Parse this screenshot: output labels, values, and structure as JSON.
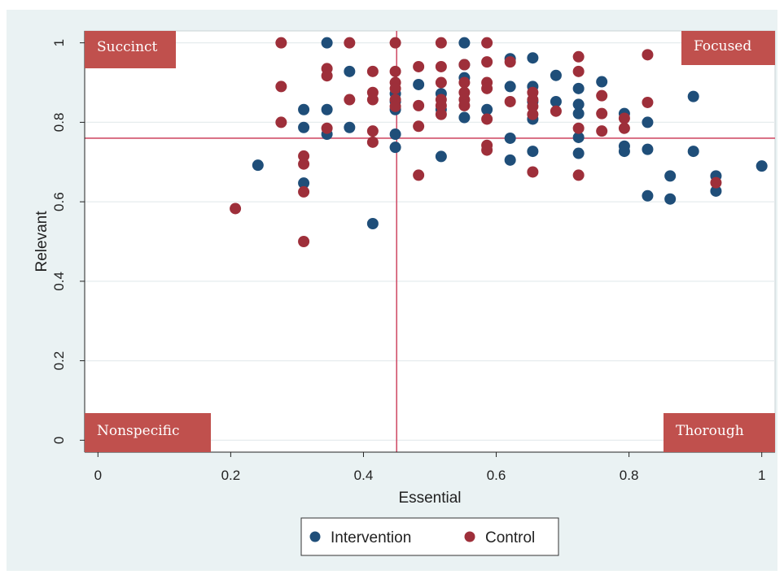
{
  "chart_data": {
    "type": "scatter",
    "title": "",
    "xlabel": "Essential",
    "ylabel": "Relevant",
    "xlim": [
      -0.02,
      1.02
    ],
    "ylim": [
      -0.03,
      1.03
    ],
    "xticks": [
      "0",
      "0.2",
      "0.4",
      "0.6",
      "0.8",
      "1"
    ],
    "yticks": [
      "0",
      "0.2",
      "0.4",
      "0.6",
      "0.8",
      "1"
    ],
    "grid": true,
    "legend_position": "bottom",
    "reference_lines": {
      "x": 0.45,
      "y": 0.76,
      "color": "#d0506a"
    },
    "quadrant_labels": {
      "top_left": "Succinct",
      "top_right": "Focused",
      "bottom_left": "Nonspecific",
      "bottom_right": "Thorough"
    },
    "series": [
      {
        "name": "Intervention",
        "color": "#1f4e79",
        "points": [
          [
            0.241,
            0.692
          ],
          [
            0.31,
            0.832
          ],
          [
            0.31,
            0.787
          ],
          [
            0.31,
            0.647
          ],
          [
            0.345,
            1.0
          ],
          [
            0.345,
            0.832
          ],
          [
            0.345,
            0.77
          ],
          [
            0.379,
            0.928
          ],
          [
            0.379,
            0.787
          ],
          [
            0.414,
            0.545
          ],
          [
            0.448,
            0.872
          ],
          [
            0.448,
            0.852
          ],
          [
            0.448,
            0.832
          ],
          [
            0.448,
            0.77
          ],
          [
            0.448,
            0.737
          ],
          [
            0.483,
            0.895
          ],
          [
            0.517,
            0.872
          ],
          [
            0.517,
            0.832
          ],
          [
            0.517,
            0.714
          ],
          [
            0.552,
            1.0
          ],
          [
            0.552,
            0.945
          ],
          [
            0.552,
            0.912
          ],
          [
            0.552,
            0.812
          ],
          [
            0.586,
            0.832
          ],
          [
            0.621,
            0.96
          ],
          [
            0.621,
            0.89
          ],
          [
            0.621,
            0.76
          ],
          [
            0.621,
            0.705
          ],
          [
            0.655,
            0.962
          ],
          [
            0.655,
            0.89
          ],
          [
            0.655,
            0.852
          ],
          [
            0.655,
            0.808
          ],
          [
            0.655,
            0.727
          ],
          [
            0.69,
            0.918
          ],
          [
            0.69,
            0.852
          ],
          [
            0.724,
            0.885
          ],
          [
            0.724,
            0.845
          ],
          [
            0.724,
            0.822
          ],
          [
            0.724,
            0.762
          ],
          [
            0.724,
            0.722
          ],
          [
            0.759,
            0.902
          ],
          [
            0.793,
            0.822
          ],
          [
            0.793,
            0.74
          ],
          [
            0.793,
            0.727
          ],
          [
            0.828,
            0.8
          ],
          [
            0.828,
            0.732
          ],
          [
            0.828,
            0.615
          ],
          [
            0.862,
            0.665
          ],
          [
            0.862,
            0.607
          ],
          [
            0.897,
            0.865
          ],
          [
            0.897,
            0.727
          ],
          [
            0.931,
            0.665
          ],
          [
            0.931,
            0.627
          ],
          [
            1.0,
            0.69
          ]
        ]
      },
      {
        "name": "Control",
        "color": "#9e2f3a",
        "points": [
          [
            0.207,
            0.583
          ],
          [
            0.276,
            1.0
          ],
          [
            0.276,
            0.89
          ],
          [
            0.276,
            0.8
          ],
          [
            0.31,
            0.715
          ],
          [
            0.31,
            0.695
          ],
          [
            0.31,
            0.625
          ],
          [
            0.31,
            0.5
          ],
          [
            0.345,
            0.935
          ],
          [
            0.345,
            0.917
          ],
          [
            0.345,
            0.785
          ],
          [
            0.379,
            1.0
          ],
          [
            0.379,
            0.857
          ],
          [
            0.414,
            0.928
          ],
          [
            0.414,
            0.875
          ],
          [
            0.414,
            0.857
          ],
          [
            0.414,
            0.778
          ],
          [
            0.414,
            0.75
          ],
          [
            0.448,
            1.0
          ],
          [
            0.448,
            0.928
          ],
          [
            0.448,
            0.9
          ],
          [
            0.448,
            0.885
          ],
          [
            0.448,
            0.857
          ],
          [
            0.448,
            0.84
          ],
          [
            0.483,
            0.94
          ],
          [
            0.483,
            0.842
          ],
          [
            0.483,
            0.79
          ],
          [
            0.483,
            0.667
          ],
          [
            0.517,
            1.0
          ],
          [
            0.517,
            0.94
          ],
          [
            0.517,
            0.9
          ],
          [
            0.517,
            0.857
          ],
          [
            0.517,
            0.842
          ],
          [
            0.517,
            0.82
          ],
          [
            0.552,
            0.945
          ],
          [
            0.552,
            0.9
          ],
          [
            0.552,
            0.875
          ],
          [
            0.552,
            0.857
          ],
          [
            0.552,
            0.842
          ],
          [
            0.586,
            1.0
          ],
          [
            0.586,
            0.952
          ],
          [
            0.586,
            0.9
          ],
          [
            0.586,
            0.885
          ],
          [
            0.586,
            0.808
          ],
          [
            0.586,
            0.742
          ],
          [
            0.586,
            0.73
          ],
          [
            0.621,
            0.952
          ],
          [
            0.621,
            0.852
          ],
          [
            0.655,
            0.875
          ],
          [
            0.655,
            0.857
          ],
          [
            0.655,
            0.84
          ],
          [
            0.655,
            0.82
          ],
          [
            0.655,
            0.675
          ],
          [
            0.69,
            0.828
          ],
          [
            0.724,
            0.965
          ],
          [
            0.724,
            0.928
          ],
          [
            0.724,
            0.785
          ],
          [
            0.724,
            0.667
          ],
          [
            0.759,
            0.867
          ],
          [
            0.759,
            0.822
          ],
          [
            0.759,
            0.778
          ],
          [
            0.793,
            0.81
          ],
          [
            0.793,
            0.785
          ],
          [
            0.828,
            0.97
          ],
          [
            0.828,
            0.85
          ],
          [
            0.931,
            0.648
          ]
        ]
      }
    ]
  }
}
